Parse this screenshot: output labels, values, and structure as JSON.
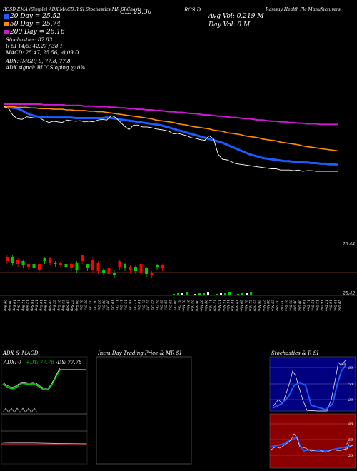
{
  "header": {
    "title_left": "RCSD EMA (Simple) ADX,MACD,R SI,Stochastics,MR SI Charts",
    "title_center": "CL: 25.30",
    "title_ticker": "RCS D",
    "title_company": "Ramsay Health Plc Manufacturers",
    "ma20": "20  Day = 25.52",
    "ma50": "50  Day = 25.74",
    "ma200": "200  Day = 26.16",
    "stochastic": "Stochastics: 87.83",
    "rsi": "R                    SI 14/5: 42.27 / 38.1",
    "macd": "MACD: 25.47, 25.56, -0.09 D",
    "adx": "ADX:                                    (MGR) 0, 77.8, 77.8",
    "adx_signal": "ADX  signal:                                  BUY Sloping @ 0%",
    "avg_vol": "Avg Vol: 0.219 M",
    "day_vol": "Day Vol: 0   M"
  },
  "price_axis": {
    "label_top": "26.44",
    "label_bottom": "25.42"
  },
  "date_labels": [
    "06 Sep",
    "09 Sep",
    "10 Sep",
    "11 Sep",
    "12 Sep",
    "13 Sep",
    "16 Sep",
    "17 Sep",
    "18 Sep",
    "19 Sep",
    "20 Sep",
    "23 Sep",
    "24 Sep",
    "25 Sep",
    "26 Sep",
    "27 Sep",
    "30 Sep",
    "01 Oct",
    "02 Oct",
    "03 Oct",
    "04 Oct",
    "07 Oct",
    "08 Oct",
    "09 Oct",
    "10 Oct",
    "11 Oct",
    "14 Oct",
    "15 Oct",
    "16 Oct",
    "17 Oct",
    "18 Oct",
    "21 Oct",
    "22 Oct",
    "23 Oct",
    "24 Oct",
    "25 Oct",
    "28 Oct",
    "29 Oct",
    "30 Oct",
    "31 Oct",
    "01 Nov",
    "04 Nov",
    "05 Nov",
    "06 Nov",
    "07 Nov",
    "08 Nov",
    "11 Nov",
    "12 Nov",
    "13 Nov",
    "14 Nov",
    "15 Nov",
    "18 Nov",
    "19 Nov",
    "20 Nov",
    "21 Nov",
    "22 Nov",
    "25 Nov",
    "26 Nov",
    "27 Nov",
    "28 Nov",
    "29 Nov",
    "02 Dec",
    "03 Dec",
    "04 Dec",
    "05 Dec",
    "06 Dec",
    "09 Dec",
    "10 Dec",
    "11 Dec",
    "12 Dec",
    "13 Dec",
    "16 Dec",
    "17 Dec",
    "18 Dec",
    "19 Dec",
    "20 Dec"
  ],
  "panels": {
    "adx": {
      "title": "ADX  & MACD",
      "legend": "ADX: 0  +DY: 77.78  -DY: 77.78",
      "legend_adx": "ADX: 0",
      "legend_pdy": "+DY: 77.78",
      "legend_mdy": "-DY: 77.78"
    },
    "intraday": {
      "title": "Intra  Day Trading Price  & MR                    SI"
    },
    "stoch": {
      "title": "Stochastics & R                         SI",
      "rsi_labels": [
        "80",
        "50",
        "20"
      ],
      "mrsi_labels": [
        "80",
        "50",
        "20"
      ],
      "value_stoch": "88",
      "value_rsi": "42.27"
    }
  },
  "colors": {
    "bull": "#00cc00",
    "bear": "#ff0000",
    "ma_fast": "#1a5cff",
    "ma_mid": "#ff8c00",
    "ma_slow": "#d018d0",
    "stoch_bg": "#000080",
    "rsi_bg": "#8b0000"
  },
  "chart_data": {
    "type": "line",
    "title": "RCSD EMA (Simple) ADX,MACD,R SI,Stochastics,MR SI Charts",
    "x": [
      "06 Sep",
      "09 Sep",
      "10 Sep",
      "11 Sep",
      "12 Sep",
      "13 Sep",
      "16 Sep",
      "17 Sep",
      "18 Sep",
      "19 Sep",
      "20 Sep",
      "23 Sep",
      "24 Sep",
      "25 Sep",
      "26 Sep",
      "27 Sep",
      "30 Sep",
      "01 Oct",
      "02 Oct",
      "03 Oct",
      "04 Oct",
      "07 Oct",
      "08 Oct",
      "09 Oct",
      "10 Oct",
      "11 Oct",
      "14 Oct",
      "15 Oct",
      "16 Oct",
      "17 Oct",
      "18 Oct",
      "21 Oct",
      "22 Oct",
      "23 Oct",
      "24 Oct",
      "25 Oct",
      "28 Oct",
      "29 Oct",
      "30 Oct",
      "31 Oct",
      "01 Nov",
      "04 Nov",
      "05 Nov",
      "06 Nov",
      "07 Nov",
      "08 Nov",
      "11 Nov",
      "12 Nov",
      "13 Nov",
      "14 Nov",
      "15 Nov",
      "18 Nov",
      "19 Nov",
      "20 Nov",
      "21 Nov",
      "22 Nov",
      "25 Nov",
      "26 Nov",
      "27 Nov",
      "28 Nov",
      "29 Nov",
      "02 Dec",
      "03 Dec",
      "04 Dec",
      "05 Dec",
      "06 Dec",
      "09 Dec",
      "10 Dec",
      "11 Dec",
      "12 Dec",
      "13 Dec",
      "16 Dec",
      "17 Dec",
      "18 Dec",
      "19 Dec",
      "20 Dec"
    ],
    "series": [
      {
        "name": "20  Day",
        "values": [
          26.44,
          26.43,
          26.42,
          26.41,
          26.38,
          26.34,
          26.31,
          26.29,
          26.28,
          26.28,
          26.27,
          26.27,
          26.27,
          26.27,
          26.27,
          26.27,
          26.26,
          26.26,
          26.26,
          26.26,
          26.26,
          26.26,
          26.26,
          26.27,
          26.26,
          26.25,
          26.24,
          26.23,
          26.22,
          26.21,
          26.2,
          26.19,
          26.18,
          26.17,
          26.16,
          26.15,
          26.13,
          26.11,
          26.09,
          26.07,
          26.05,
          26.03,
          26.01,
          25.99,
          25.97,
          25.95,
          25.93,
          25.91,
          25.89,
          25.87,
          25.84,
          25.81,
          25.78,
          25.75,
          25.72,
          25.69,
          25.67,
          25.65,
          25.63,
          25.62,
          25.61,
          25.6,
          25.59,
          25.58,
          25.58,
          25.57,
          25.57,
          25.56,
          25.56,
          25.55,
          25.55,
          25.54,
          25.54,
          25.53,
          25.53,
          25.52
        ]
      },
      {
        "name": "50  Day",
        "values": [
          26.44,
          26.44,
          26.44,
          26.43,
          26.43,
          26.43,
          26.42,
          26.42,
          26.41,
          26.41,
          26.41,
          26.4,
          26.4,
          26.4,
          26.39,
          26.39,
          26.38,
          26.38,
          26.38,
          26.37,
          26.37,
          26.36,
          26.36,
          26.35,
          26.34,
          26.33,
          26.32,
          26.31,
          26.3,
          26.29,
          26.28,
          26.27,
          26.26,
          26.25,
          26.23,
          26.22,
          26.21,
          26.2,
          26.19,
          26.17,
          26.16,
          26.15,
          26.13,
          26.12,
          26.11,
          26.1,
          26.09,
          26.07,
          26.06,
          26.05,
          26.03,
          26.02,
          26.01,
          26.0,
          25.98,
          25.97,
          25.96,
          25.95,
          25.93,
          25.92,
          25.91,
          25.9,
          25.88,
          25.87,
          25.86,
          25.85,
          25.84,
          25.82,
          25.81,
          25.8,
          25.79,
          25.78,
          25.77,
          25.76,
          25.75,
          25.74
        ]
      },
      {
        "name": "200  Day",
        "values": [
          26.48,
          26.48,
          26.48,
          26.48,
          26.48,
          26.48,
          26.48,
          26.48,
          26.48,
          26.47,
          26.47,
          26.47,
          26.47,
          26.47,
          26.46,
          26.46,
          26.46,
          26.46,
          26.45,
          26.45,
          26.45,
          26.44,
          26.44,
          26.44,
          26.43,
          26.43,
          26.42,
          26.42,
          26.41,
          26.41,
          26.4,
          26.4,
          26.39,
          26.39,
          26.38,
          26.38,
          26.37,
          26.36,
          26.36,
          26.35,
          26.35,
          26.34,
          26.33,
          26.33,
          26.32,
          26.31,
          26.31,
          26.3,
          26.29,
          26.29,
          26.28,
          26.27,
          26.27,
          26.26,
          26.25,
          26.25,
          26.24,
          26.23,
          26.23,
          26.22,
          26.21,
          26.21,
          26.2,
          26.2,
          26.19,
          26.19,
          26.18,
          26.18,
          26.17,
          26.17,
          26.17,
          26.16,
          26.16,
          26.16,
          26.16,
          26.16
        ]
      }
    ],
    "ylim": [
      25.42,
      26.44
    ],
    "xlabel": "",
    "ylabel": ""
  }
}
